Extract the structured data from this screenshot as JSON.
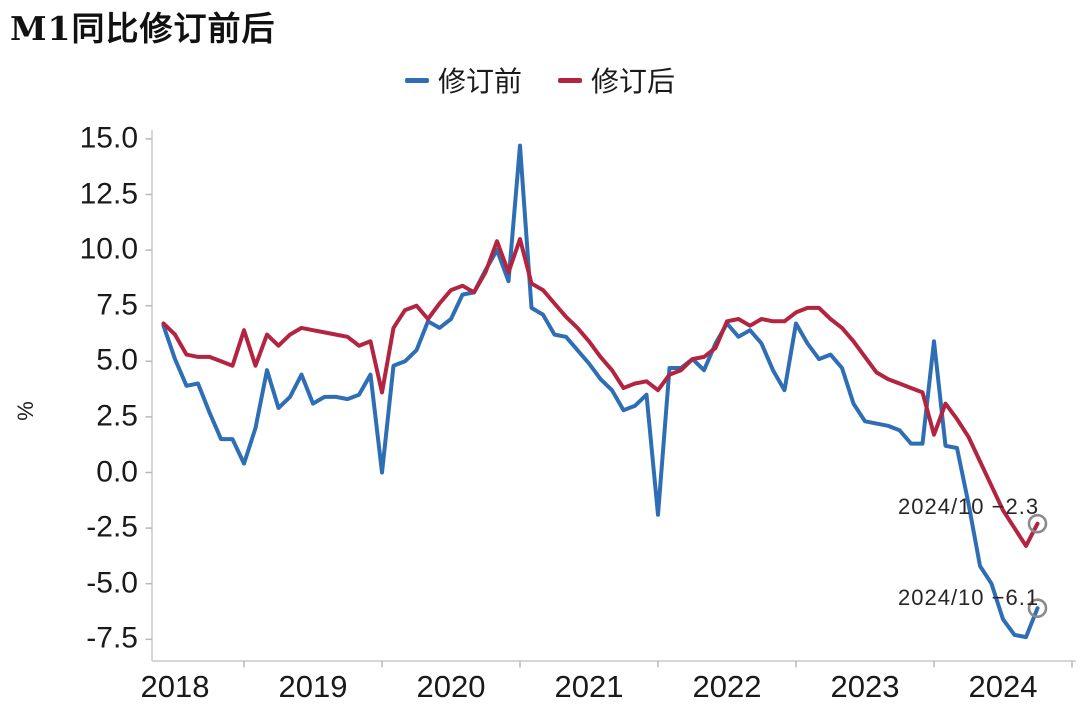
{
  "title": "M1同比修订前后",
  "legend": [
    {
      "label": "修订前",
      "color": "#2e6eb5"
    },
    {
      "label": "修订后",
      "color": "#b32440"
    }
  ],
  "annotations": [
    {
      "text": "2024/10 −2.3",
      "series": "修订后",
      "value": -2.3,
      "date": "2024/10"
    },
    {
      "text": "2024/10 −6.1",
      "series": "修订前",
      "value": -6.1,
      "date": "2024/10"
    }
  ],
  "chart_data": {
    "type": "line",
    "x_first": "2018-06",
    "x_last": "2024-10",
    "x_tick_labels": [
      "2018",
      "2019",
      "2020",
      "2021",
      "2022",
      "2023",
      "2024"
    ],
    "y_ticks": [
      "15.0",
      "12.5",
      "10.0",
      "7.5",
      "5.0",
      "2.5",
      "0.0",
      "-2.5",
      "-5.0",
      "-7.5"
    ],
    "ylabel": "%",
    "ylim": [
      -8.8,
      16.2
    ],
    "grid": false,
    "legend_position": "top-center",
    "end_marker_color": "#8a8a8a",
    "series": [
      {
        "name": "修订前",
        "color": "#2e6eb5",
        "values": [
          6.6,
          5.1,
          3.9,
          4.0,
          2.7,
          1.5,
          1.5,
          0.4,
          2.0,
          4.6,
          2.9,
          3.4,
          4.4,
          3.1,
          3.4,
          3.4,
          3.3,
          3.5,
          4.4,
          0.0,
          4.8,
          5.0,
          5.5,
          6.8,
          6.5,
          6.9,
          8.0,
          8.1,
          9.1,
          10.0,
          8.6,
          14.7,
          7.4,
          7.1,
          6.2,
          6.1,
          5.5,
          4.9,
          4.2,
          3.7,
          2.8,
          3.0,
          3.5,
          -1.9,
          4.7,
          4.7,
          5.1,
          4.6,
          5.8,
          6.7,
          6.1,
          6.4,
          5.8,
          4.6,
          3.7,
          6.7,
          5.8,
          5.1,
          5.3,
          4.7,
          3.1,
          2.3,
          2.2,
          2.1,
          1.9,
          1.3,
          1.3,
          5.9,
          1.2,
          1.1,
          -1.4,
          -4.2,
          -5.0,
          -6.6,
          -7.3,
          -7.4,
          -6.1
        ]
      },
      {
        "name": "修订后",
        "color": "#b32440",
        "values": [
          6.7,
          6.2,
          5.3,
          5.2,
          5.2,
          5.0,
          4.8,
          6.4,
          4.8,
          6.2,
          5.7,
          6.2,
          6.5,
          6.4,
          6.3,
          6.2,
          6.1,
          5.7,
          5.9,
          3.6,
          6.5,
          7.3,
          7.5,
          6.9,
          7.6,
          8.2,
          8.4,
          8.1,
          9.0,
          10.4,
          9.0,
          10.5,
          8.5,
          8.2,
          7.6,
          7.0,
          6.5,
          5.9,
          5.2,
          4.6,
          3.8,
          4.0,
          4.1,
          3.7,
          4.4,
          4.6,
          5.1,
          5.2,
          5.6,
          6.8,
          6.9,
          6.6,
          6.9,
          6.8,
          6.8,
          7.2,
          7.4,
          7.4,
          6.9,
          6.5,
          5.9,
          5.2,
          4.5,
          4.2,
          4.0,
          3.8,
          3.6,
          1.7,
          3.1,
          2.4,
          1.6,
          0.5,
          -0.6,
          -1.7,
          -2.5,
          -3.3,
          -2.3
        ]
      }
    ]
  }
}
